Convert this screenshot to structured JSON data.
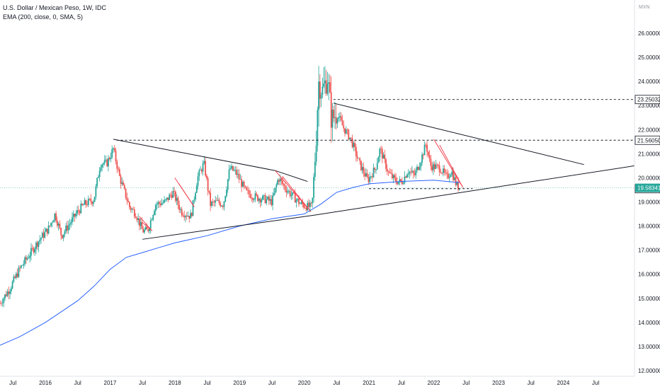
{
  "legend": {
    "title": "U.S. Dollar / Mexican Peso, 1W, IDC",
    "indicator": "EMA (200, close, 0, SMA, 5)"
  },
  "colors": {
    "up": "#26a69a",
    "down": "#ef5350",
    "ema": "#2962ff",
    "trend": "#131722",
    "pattern": "#f23645",
    "priceLine": "#26a69a",
    "tagBlack": "#131722"
  },
  "chart_data": {
    "type": "candlestick",
    "symbol": "U.S. Dollar / Mexican Peso",
    "interval": "1W",
    "source": "IDC",
    "currency": "MXN",
    "ylim": [
      11.85,
      26.35
    ],
    "y_ticks": [
      "12.00000",
      "13.00000",
      "14.00000",
      "15.00000",
      "16.00000",
      "17.00000",
      "18.00000",
      "19.00000",
      "20.00000",
      "21.00000",
      "22.00000",
      "23.00000",
      "24.00000",
      "25.00000",
      "26.00000"
    ],
    "x_range": [
      2015.3,
      2025.1
    ],
    "x_ticks": [
      {
        "t": 2015.5,
        "label": "Jul"
      },
      {
        "t": 2016.0,
        "label": "2016"
      },
      {
        "t": 2016.5,
        "label": "Jul"
      },
      {
        "t": 2017.0,
        "label": "2017"
      },
      {
        "t": 2017.5,
        "label": "Jul"
      },
      {
        "t": 2018.0,
        "label": "2018"
      },
      {
        "t": 2018.5,
        "label": "Jul"
      },
      {
        "t": 2019.0,
        "label": "2019"
      },
      {
        "t": 2019.5,
        "label": "Jul"
      },
      {
        "t": 2020.0,
        "label": "2020"
      },
      {
        "t": 2020.5,
        "label": "Jul"
      },
      {
        "t": 2021.0,
        "label": "2021"
      },
      {
        "t": 2021.5,
        "label": "Jul"
      },
      {
        "t": 2022.0,
        "label": "2022"
      },
      {
        "t": 2022.5,
        "label": "Jul"
      },
      {
        "t": 2023.0,
        "label": "2023"
      },
      {
        "t": 2023.5,
        "label": "Jul"
      },
      {
        "t": 2024.0,
        "label": "2024"
      },
      {
        "t": 2024.5,
        "label": "Jul"
      }
    ],
    "price_anchors": [
      [
        2015.3,
        14.8
      ],
      [
        2015.45,
        15.4
      ],
      [
        2015.6,
        16.2
      ],
      [
        2015.75,
        16.8
      ],
      [
        2015.9,
        17.4
      ],
      [
        2016.05,
        17.9
      ],
      [
        2016.15,
        18.5
      ],
      [
        2016.25,
        17.6
      ],
      [
        2016.4,
        18.2
      ],
      [
        2016.5,
        18.6
      ],
      [
        2016.6,
        18.9
      ],
      [
        2016.75,
        19.1
      ],
      [
        2016.85,
        20.6
      ],
      [
        2016.95,
        20.6
      ],
      [
        2017.05,
        21.2
      ],
      [
        2017.15,
        20.0
      ],
      [
        2017.3,
        18.8
      ],
      [
        2017.4,
        18.5
      ],
      [
        2017.5,
        17.8
      ],
      [
        2017.58,
        17.8
      ],
      [
        2017.7,
        18.9
      ],
      [
        2017.85,
        19.0
      ],
      [
        2017.97,
        19.4
      ],
      [
        2018.1,
        18.6
      ],
      [
        2018.25,
        18.4
      ],
      [
        2018.35,
        20.0
      ],
      [
        2018.45,
        20.6
      ],
      [
        2018.55,
        18.9
      ],
      [
        2018.65,
        19.0
      ],
      [
        2018.75,
        18.9
      ],
      [
        2018.85,
        20.4
      ],
      [
        2018.95,
        20.2
      ],
      [
        2019.1,
        19.4
      ],
      [
        2019.25,
        19.2
      ],
      [
        2019.4,
        19.1
      ],
      [
        2019.5,
        19.0
      ],
      [
        2019.6,
        20.0
      ],
      [
        2019.7,
        19.6
      ],
      [
        2019.8,
        19.3
      ],
      [
        2019.95,
        18.9
      ],
      [
        2020.05,
        18.8
      ],
      [
        2020.12,
        18.8
      ],
      [
        2020.18,
        21.5
      ],
      [
        2020.22,
        24.0
      ],
      [
        2020.28,
        23.6
      ],
      [
        2020.36,
        24.2
      ],
      [
        2020.42,
        22.4
      ],
      [
        2020.5,
        22.7
      ],
      [
        2020.6,
        22.1
      ],
      [
        2020.72,
        21.6
      ],
      [
        2020.85,
        20.6
      ],
      [
        2020.98,
        19.9
      ],
      [
        2021.1,
        20.4
      ],
      [
        2021.17,
        21.2
      ],
      [
        2021.3,
        20.2
      ],
      [
        2021.4,
        19.9
      ],
      [
        2021.5,
        19.8
      ],
      [
        2021.6,
        20.3
      ],
      [
        2021.7,
        20.1
      ],
      [
        2021.78,
        20.6
      ],
      [
        2021.88,
        21.4
      ],
      [
        2021.95,
        20.5
      ],
      [
        2022.1,
        20.4
      ],
      [
        2022.2,
        20.0
      ],
      [
        2022.27,
        20.3
      ],
      [
        2022.35,
        19.7
      ],
      [
        2022.4,
        19.58
      ]
    ],
    "ema_200": [
      [
        2015.3,
        13.05
      ],
      [
        2015.6,
        13.4
      ],
      [
        2016.0,
        14.0
      ],
      [
        2016.5,
        14.9
      ],
      [
        2016.75,
        15.5
      ],
      [
        2017.0,
        16.2
      ],
      [
        2017.25,
        16.7
      ],
      [
        2017.5,
        16.9
      ],
      [
        2017.75,
        17.1
      ],
      [
        2018.0,
        17.3
      ],
      [
        2018.5,
        17.6
      ],
      [
        2019.0,
        18.0
      ],
      [
        2019.5,
        18.3
      ],
      [
        2020.0,
        18.5
      ],
      [
        2020.25,
        18.9
      ],
      [
        2020.5,
        19.4
      ],
      [
        2020.75,
        19.6
      ],
      [
        2021.0,
        19.75
      ],
      [
        2021.5,
        19.85
      ],
      [
        2022.0,
        19.9
      ],
      [
        2022.4,
        19.8
      ]
    ],
    "drawings": {
      "black_trendlines": [
        [
          [
            2017.05,
            21.6
          ],
          [
            2019.55,
            20.3
          ]
        ],
        [
          [
            2019.55,
            20.3
          ],
          [
            2020.05,
            19.85
          ]
        ],
        [
          [
            2017.5,
            17.45
          ],
          [
            2020.15,
            18.45
          ]
        ],
        [
          [
            2020.15,
            18.45
          ],
          [
            2025.1,
            20.5
          ]
        ],
        [
          [
            2020.45,
            23.1
          ],
          [
            2024.32,
            20.55
          ]
        ]
      ],
      "red_patterns": [
        [
          [
            2017.45,
            18.4
          ],
          [
            2017.65,
            17.8
          ]
        ],
        [
          [
            2018.0,
            20.0
          ],
          [
            2018.3,
            18.8
          ]
        ],
        [
          [
            2019.55,
            20.3
          ],
          [
            2020.1,
            18.6
          ]
        ],
        [
          [
            2022.0,
            21.6
          ],
          [
            2022.45,
            19.6
          ]
        ]
      ],
      "dashed_levels": [
        {
          "y": 23.25,
          "x_start": 2020.45,
          "label": "23.25032"
        },
        {
          "y": 21.5605,
          "x_start": 2017.1,
          "label": "21.56050"
        },
        {
          "y": 19.55067,
          "x_start": 2021.0,
          "x_end": 2022.6,
          "label": "19.55067"
        }
      ]
    },
    "last_price": 19.58341,
    "last_price_label": "19.58341"
  }
}
